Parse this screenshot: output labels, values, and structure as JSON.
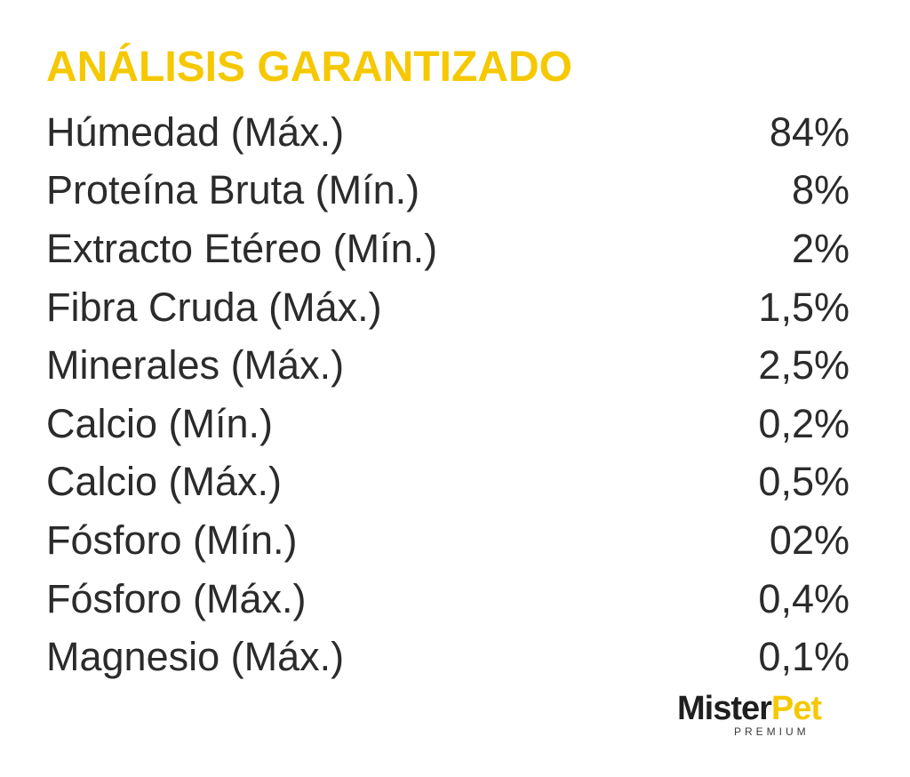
{
  "title": "ANÁLISIS GARANTIZADO",
  "colors": {
    "title": "#f5c800",
    "text": "#2b2b2b",
    "brand_accent": "#f5c800",
    "brand_dark": "#1f1f1f",
    "background": "#ffffff"
  },
  "rows": [
    {
      "label": "Húmedad (Máx.)",
      "value": "84%"
    },
    {
      "label": "Proteína Bruta (Mín.)",
      "value": "8%"
    },
    {
      "label": "Extracto Etéreo (Mín.)",
      "value": "2%"
    },
    {
      "label": "Fibra Cruda (Máx.)",
      "value": "1,5%"
    },
    {
      "label": "Minerales (Máx.)",
      "value": "2,5%"
    },
    {
      "label": "Calcio (Mín.)",
      "value": "0,2%"
    },
    {
      "label": "Calcio (Máx.)",
      "value": "0,5%"
    },
    {
      "label": "Fósforo (Mín.)",
      "value": "02%"
    },
    {
      "label": "Fósforo (Máx.)",
      "value": "0,4%"
    },
    {
      "label": "Magnesio (Máx.)",
      "value": "0,1%"
    }
  ],
  "logo": {
    "word1": "Mister",
    "word2": "Pet",
    "tagline": "PREMIUM"
  }
}
